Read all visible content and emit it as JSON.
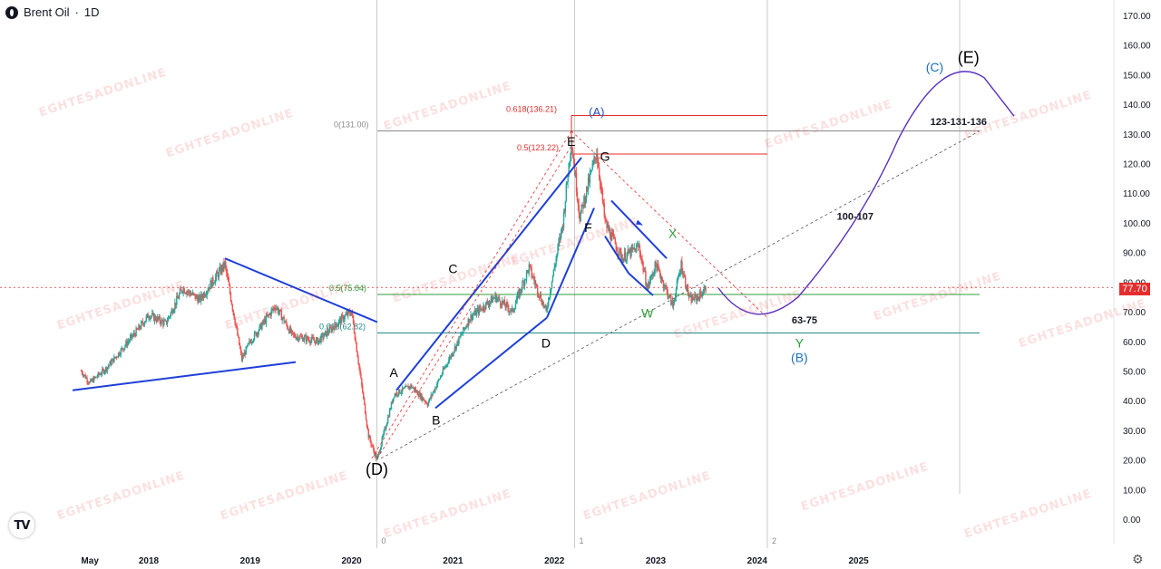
{
  "header": {
    "symbol": "Brent Oil",
    "separator": " · ",
    "interval": "1D"
  },
  "current_price": "77.70",
  "watermark_text": "EGHTESADONLINE",
  "colors": {
    "candle_up": "#26a69a",
    "candle_down": "#ef5350",
    "trend_blue": "#1e3fd8",
    "fib_red": "#e62d2d",
    "fib_green": "#2e9d3a",
    "fib_gray": "#8a8a8a",
    "teal": "#1f8a8a",
    "wave_c_curve": "#5a2fbf"
  },
  "chart_data": {
    "type": "candlestick",
    "symbol": "Brent Oil",
    "interval": "1D",
    "ylim": [
      0,
      170
    ],
    "y_ticks": [
      "170.00",
      "160.00",
      "150.00",
      "140.00",
      "130.00",
      "120.00",
      "110.00",
      "100.00",
      "90.00",
      "80.00",
      "70.00",
      "60.00",
      "50.00",
      "40.00",
      "30.00",
      "20.00",
      "10.00",
      "0.00"
    ],
    "x_ticks": [
      "May",
      "2018",
      "2019",
      "2020",
      "2021",
      "2022",
      "2023",
      "2024",
      "2025"
    ],
    "price_path": [
      [
        "2017-05",
        50
      ],
      [
        "2017-06",
        46
      ],
      [
        "2017-08",
        51
      ],
      [
        "2017-10",
        58
      ],
      [
        "2017-12",
        65
      ],
      [
        "2018-01",
        69
      ],
      [
        "2018-03",
        66
      ],
      [
        "2018-05",
        78
      ],
      [
        "2018-07",
        74
      ],
      [
        "2018-10",
        86
      ],
      [
        "2018-12",
        54
      ],
      [
        "2019-01",
        60
      ],
      [
        "2019-04",
        72
      ],
      [
        "2019-06",
        62
      ],
      [
        "2019-09",
        60
      ],
      [
        "2019-12",
        68
      ],
      [
        "2020-01",
        70
      ],
      [
        "2020-03",
        28
      ],
      [
        "2020-04",
        20
      ],
      [
        "2020-06",
        42
      ],
      [
        "2020-08",
        45
      ],
      [
        "2020-10",
        39
      ],
      [
        "2020-12",
        51
      ],
      [
        "2021-03",
        68
      ],
      [
        "2021-06",
        75
      ],
      [
        "2021-08",
        70
      ],
      [
        "2021-10",
        85
      ],
      [
        "2021-12",
        70
      ],
      [
        "2022-02",
        100
      ],
      [
        "2022-03",
        128
      ],
      [
        "2022-04",
        102
      ],
      [
        "2022-06",
        124
      ],
      [
        "2022-07",
        100
      ],
      [
        "2022-09",
        88
      ],
      [
        "2022-11",
        92
      ],
      [
        "2022-12",
        78
      ],
      [
        "2023-01",
        86
      ],
      [
        "2023-03",
        72
      ],
      [
        "2023-04",
        86
      ],
      [
        "2023-05",
        74
      ],
      [
        "2023-06",
        75
      ],
      [
        "2023-07",
        78
      ]
    ],
    "fib_levels": [
      {
        "label": "0(131.00)",
        "value": 131.0
      },
      {
        "label": "0.618(136.21)",
        "value": 136.21
      },
      {
        "label": "0.5(123.22)",
        "value": 123.22
      },
      {
        "label": "0.5(75.84)",
        "value": 75.84
      },
      {
        "label": "0.618(62.82)",
        "value": 62.82
      }
    ],
    "wave_labels": [
      {
        "text": "(D)",
        "x": "2020-04",
        "y": 15
      },
      {
        "text": "A",
        "x": "2020-06",
        "y": 48
      },
      {
        "text": "B",
        "x": "2020-11",
        "y": 32
      },
      {
        "text": "C",
        "x": "2021-01",
        "y": 83
      },
      {
        "text": "D",
        "x": "2021-12",
        "y": 58
      },
      {
        "text": "E",
        "x": "2022-03",
        "y": 126
      },
      {
        "text": "F",
        "x": "2022-05",
        "y": 97
      },
      {
        "text": "G",
        "x": "2022-07",
        "y": 121
      },
      {
        "text": "W",
        "x": "2022-12",
        "y": 68
      },
      {
        "text": "X",
        "x": "2023-03",
        "y": 95
      },
      {
        "text": "Y",
        "x": "2024-06",
        "y": 58
      },
      {
        "text": "(A)",
        "x": "2022-06",
        "y": 136
      },
      {
        "text": "(B)",
        "x": "2024-06",
        "y": 53
      },
      {
        "text": "(C)",
        "x": "2025-10",
        "y": 151
      },
      {
        "text": "(E)",
        "x": "2026-02",
        "y": 154
      }
    ],
    "annotations": [
      "123-131-136",
      "100-107",
      "63-75"
    ],
    "vertical_markers": [
      "0",
      "1",
      "2"
    ]
  }
}
